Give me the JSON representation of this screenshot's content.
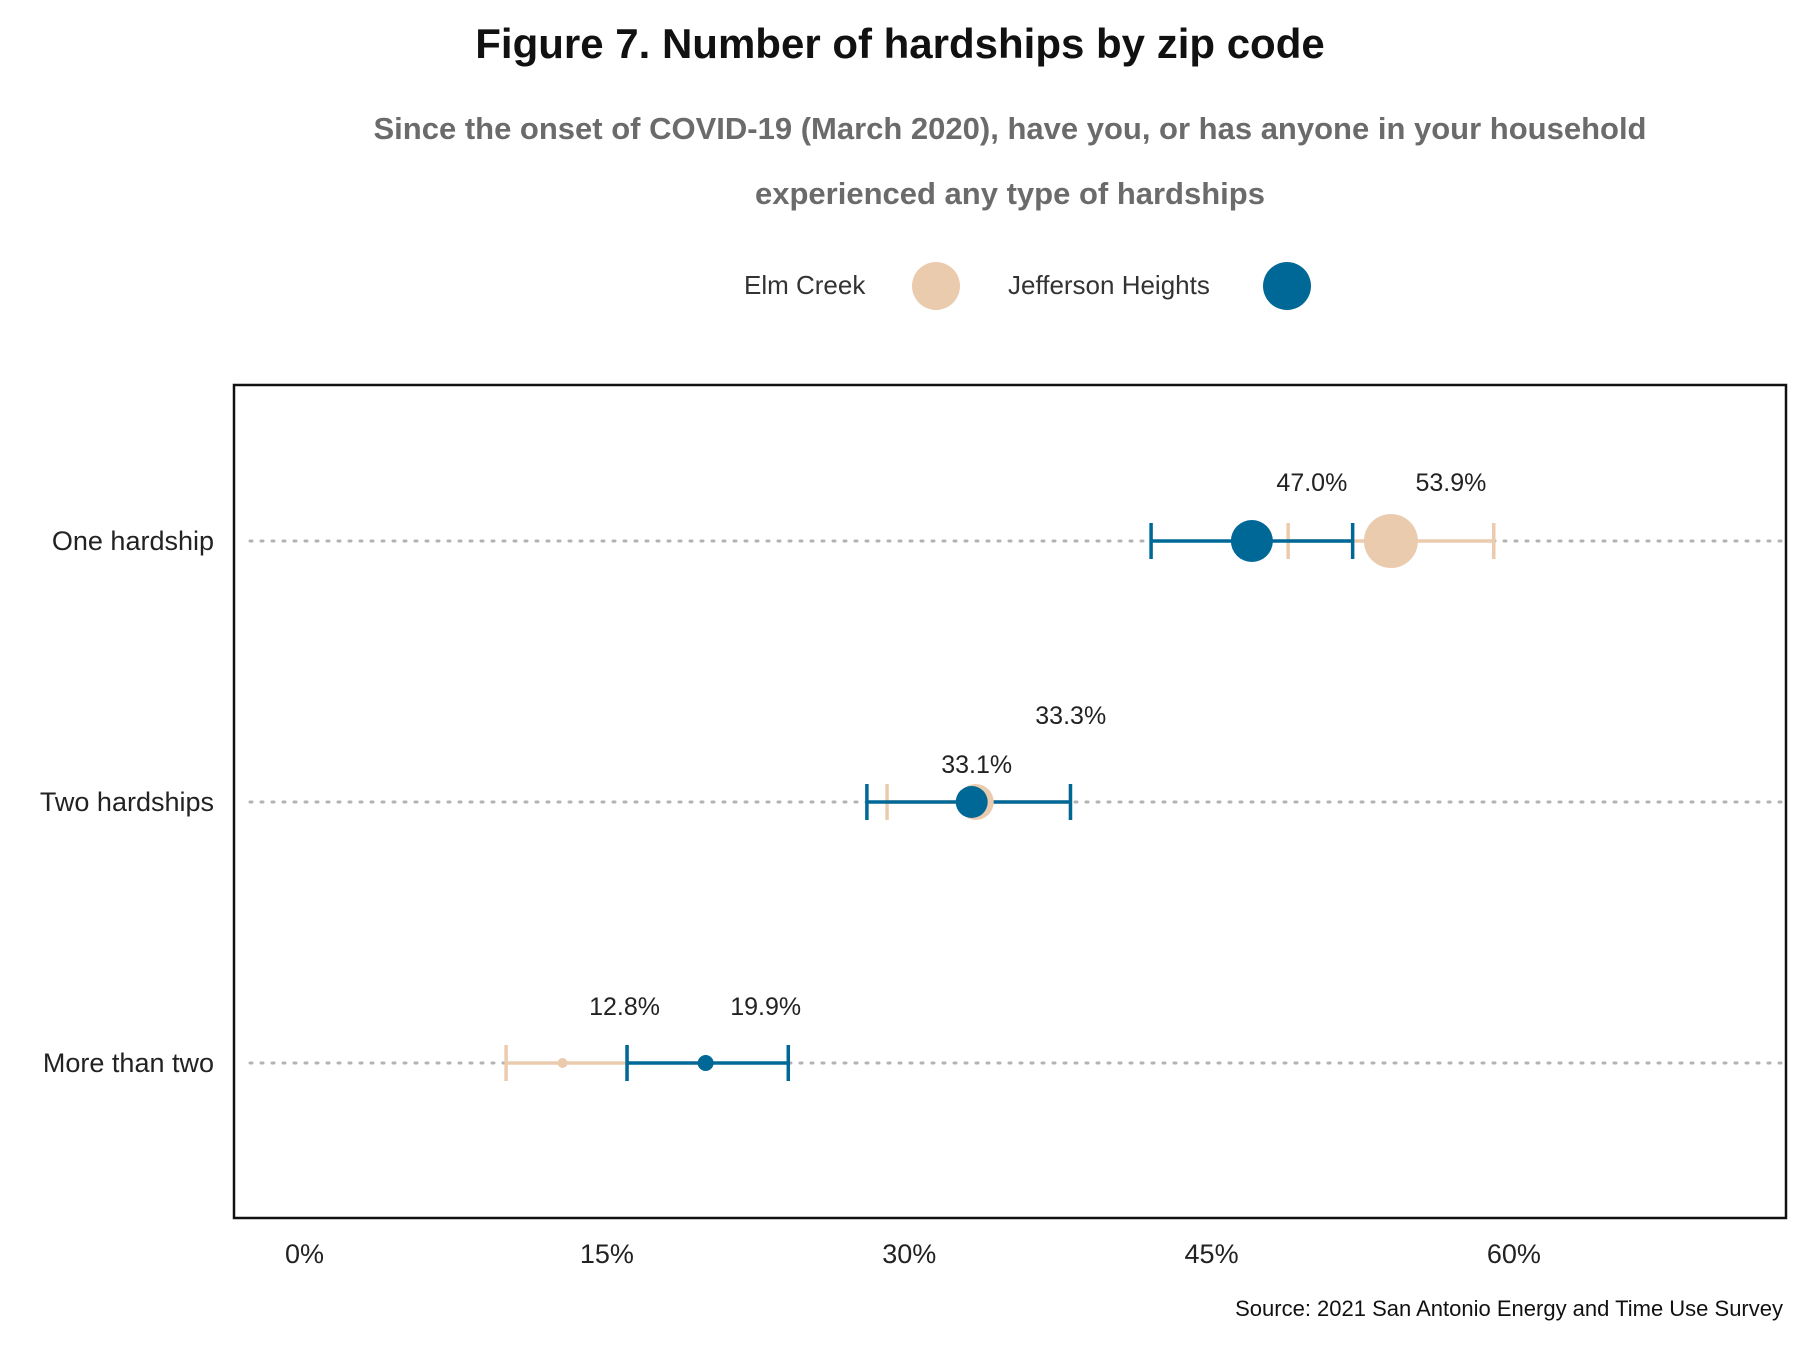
{
  "chart_data": {
    "type": "dot-errorbar",
    "title": "Figure 7. Number of hardships by zip code",
    "subtitle": "Since the onset of COVID-19 (March 2020), have you, or has anyone in your household experienced any type of hardships",
    "source": "Source: 2021 San Antonio Energy and Time Use Survey",
    "categories": [
      "One hardship",
      "Two hardships",
      "More than two"
    ],
    "x_ticks": [
      "0%",
      "15%",
      "30%",
      "45%",
      "60%"
    ],
    "x_tick_values": [
      0,
      15,
      30,
      45,
      60
    ],
    "xlim": [
      -3.5,
      73.5
    ],
    "grid": "dotted horizontal",
    "legend_position": "top",
    "series": [
      {
        "name": "Elm Creek",
        "color": "#ebcbae",
        "values": [
          53.9,
          33.3,
          12.8
        ],
        "labels": [
          "53.9%",
          "33.3%",
          "12.8%"
        ],
        "ci_low": [
          48.8,
          28.9,
          10.0
        ],
        "ci_high": [
          59.0,
          38.0,
          16.0
        ],
        "point_size": [
          27,
          18,
          5
        ]
      },
      {
        "name": "Jefferson Heights",
        "color": "#006897",
        "values": [
          47.0,
          33.1,
          19.9
        ],
        "labels": [
          "47.0%",
          "33.1%",
          "19.9%"
        ],
        "ci_low": [
          42.0,
          27.9,
          16.0
        ],
        "ci_high": [
          52.0,
          38.0,
          24.0
        ],
        "point_size": [
          21,
          16,
          8
        ]
      }
    ]
  }
}
